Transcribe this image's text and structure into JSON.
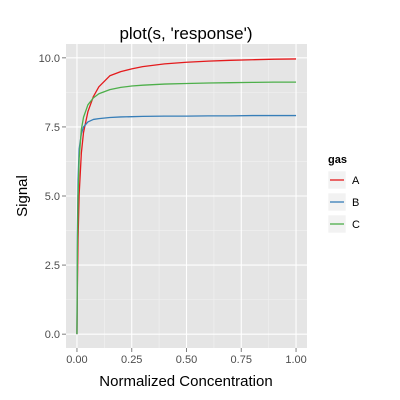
{
  "chart_data": {
    "type": "line",
    "title": "plot(s, 'response')",
    "xlabel": "Normalized Concentration",
    "ylabel": "Signal",
    "xlim": [
      -0.05,
      1.05
    ],
    "ylim": [
      -0.5,
      10.5
    ],
    "x_ticks": [
      0.0,
      0.25,
      0.5,
      0.75,
      1.0
    ],
    "x_tick_labels": [
      "0.00",
      "0.25",
      "0.50",
      "0.75",
      "1.00"
    ],
    "y_ticks": [
      0.0,
      2.5,
      5.0,
      7.5,
      10.0
    ],
    "y_tick_labels": [
      "0.0",
      "2.5",
      "5.0",
      "7.5",
      "10.0"
    ],
    "grid": true,
    "legend": {
      "title": "gas",
      "placement": "right"
    },
    "x": [
      0.0,
      0.002,
      0.005,
      0.01,
      0.02,
      0.03,
      0.05,
      0.075,
      0.1,
      0.15,
      0.2,
      0.25,
      0.3,
      0.4,
      0.5,
      0.6,
      0.7,
      0.8,
      0.9,
      1.0
    ],
    "series": [
      {
        "name": "A",
        "color": "#E41A1C",
        "values": [
          0.0,
          1.7,
          3.45,
          5.05,
          6.55,
          7.3,
          8.05,
          8.6,
          8.95,
          9.35,
          9.5,
          9.6,
          9.68,
          9.78,
          9.84,
          9.88,
          9.91,
          9.93,
          9.95,
          9.96
        ]
      },
      {
        "name": "B",
        "color": "#377EB8",
        "values": [
          0.0,
          3.6,
          5.6,
          6.7,
          7.25,
          7.5,
          7.68,
          7.77,
          7.8,
          7.84,
          7.86,
          7.87,
          7.88,
          7.89,
          7.89,
          7.9,
          7.9,
          7.91,
          7.91,
          7.91
        ]
      },
      {
        "name": "C",
        "color": "#4DAF4A",
        "values": [
          0.0,
          3.0,
          4.95,
          6.35,
          7.4,
          7.85,
          8.3,
          8.55,
          8.7,
          8.85,
          8.93,
          8.98,
          9.01,
          9.05,
          9.07,
          9.09,
          9.1,
          9.11,
          9.12,
          9.12
        ]
      }
    ]
  }
}
